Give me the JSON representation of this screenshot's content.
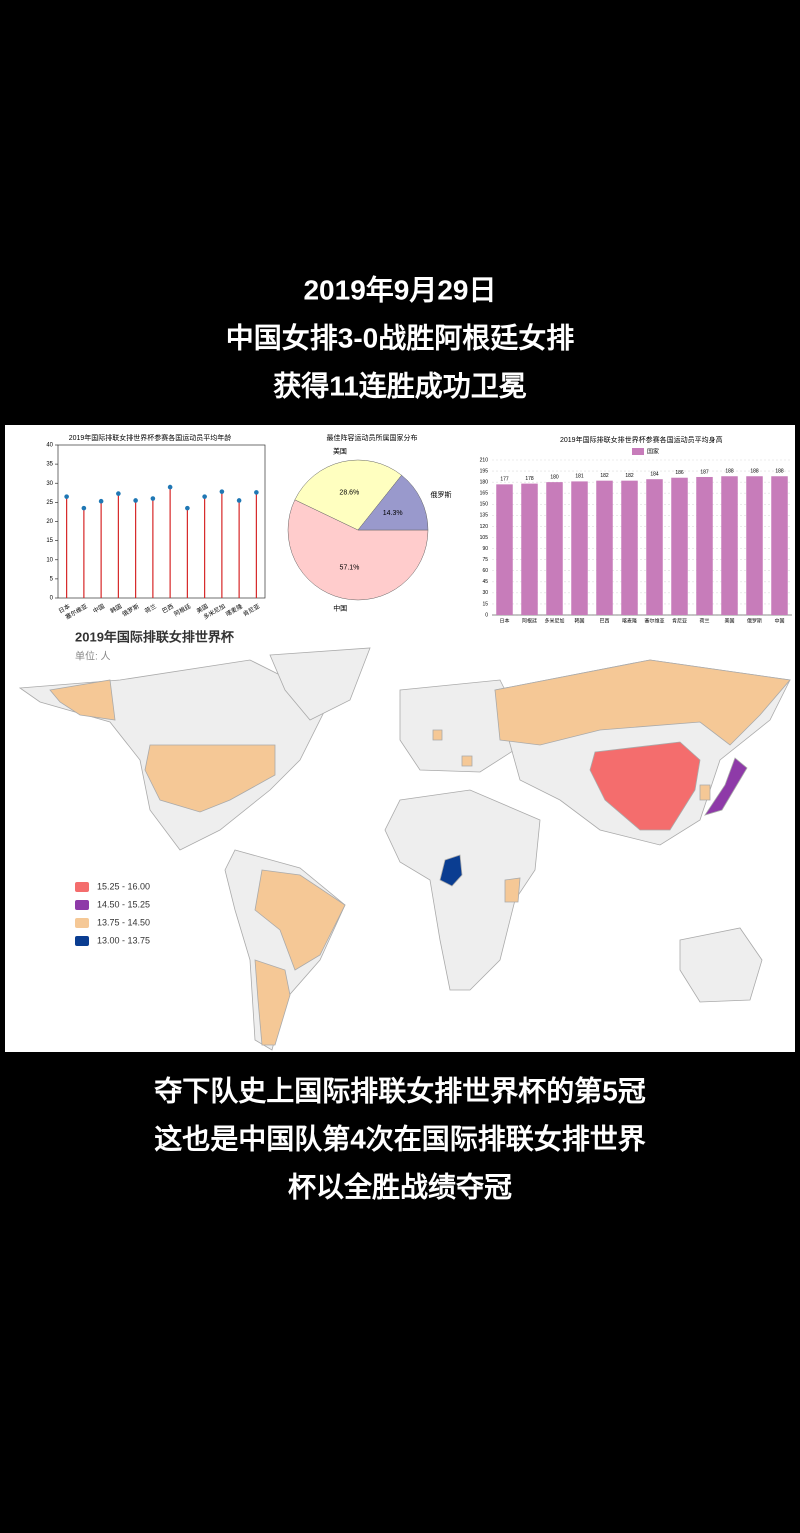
{
  "captions_top": [
    "2019年9月29日",
    "中国女排3-0战胜阿根廷女排",
    "获得11连胜成功卫冕"
  ],
  "captions_bottom": [
    "夺下队史上国际排联女排世界杯的第5冠",
    "这也是中国队第4次在国际排联女排世界",
    "杯以全胜战绩夺冠"
  ],
  "chart_data": [
    {
      "type": "lollipop",
      "title": "2019年国际排联女排世界杯参赛各国运动员平均年龄",
      "categories": [
        "日本",
        "塞尔维亚",
        "中国",
        "韩国",
        "俄罗斯",
        "荷兰",
        "巴西",
        "阿根廷",
        "美国",
        "多米尼加",
        "喀麦隆",
        "肯尼亚"
      ],
      "values": [
        26.5,
        23.5,
        25.3,
        27.3,
        25.5,
        26,
        29,
        23.5,
        26.5,
        27.8,
        25.5,
        27.6
      ],
      "color": "#1f77b4",
      "stem_color": "#d62728",
      "ylim": [
        0,
        40
      ],
      "yticks": [
        0,
        5,
        10,
        15,
        20,
        25,
        30,
        35,
        40
      ]
    },
    {
      "type": "pie",
      "title": "最佳阵容运动员所属国家分布",
      "categories": [
        "中国",
        "美国",
        "俄罗斯"
      ],
      "values": [
        57.1,
        28.6,
        14.3
      ],
      "value_labels": [
        "57.1%",
        "28.6%",
        "14.3%"
      ],
      "colors": [
        "#ffcccc",
        "#ffffc0",
        "#9999cc"
      ]
    },
    {
      "type": "bar",
      "title": "2019年国际排联女排世界杯参赛各国运动员平均身高",
      "series": [
        {
          "name": "国家",
          "color": "#c77cba",
          "values": [
            177,
            178,
            180,
            181,
            182,
            182,
            184,
            186,
            187,
            188,
            188,
            188
          ]
        }
      ],
      "categories": [
        "日本",
        "阿根廷",
        "多米尼加",
        "韩国",
        "巴西",
        "喀麦隆",
        "塞尔维亚",
        "肯尼亚",
        "荷兰",
        "美国",
        "俄罗斯",
        "中国"
      ],
      "ylim": [
        0,
        210
      ],
      "yticks": [
        0,
        15,
        30,
        45,
        60,
        75,
        90,
        105,
        120,
        135,
        150,
        165,
        180,
        195,
        210
      ],
      "grid": true
    },
    {
      "type": "map",
      "title": "2019年国际排联女排世界杯",
      "subtitle": "单位: 人",
      "pieces": [
        {
          "label": "15.25 - 16.00",
          "color": "#f46d6d"
        },
        {
          "label": "14.50 - 15.25",
          "color": "#8e3aa8"
        },
        {
          "label": "13.75 - 14.50",
          "color": "#f5c896"
        },
        {
          "label": "13.00 - 13.75",
          "color": "#0a3d91"
        }
      ]
    }
  ]
}
